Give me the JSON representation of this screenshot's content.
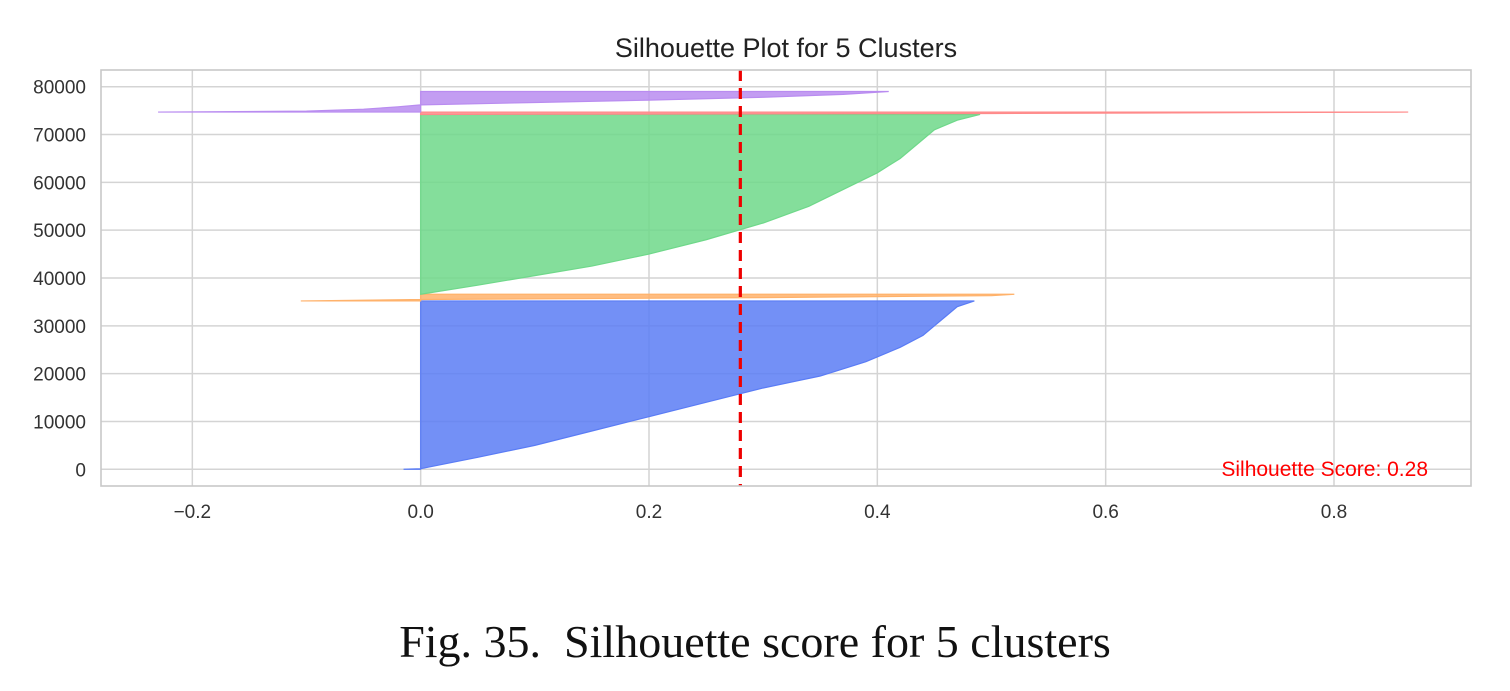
{
  "chart_data": {
    "type": "area",
    "title": "Silhouette Plot for 5 Clusters",
    "xlabel": "",
    "ylabel": "",
    "xlim": [
      -0.28,
      0.92
    ],
    "ylim": [
      -3500,
      83500
    ],
    "xticks": [
      -0.2,
      0.0,
      0.2,
      0.4,
      0.6,
      0.8
    ],
    "xtick_labels": [
      "−0.2",
      "0.0",
      "0.2",
      "0.4",
      "0.6",
      "0.8"
    ],
    "yticks": [
      0,
      10000,
      20000,
      30000,
      40000,
      50000,
      60000,
      70000,
      80000
    ],
    "ytick_labels": [
      "0",
      "10000",
      "20000",
      "30000",
      "40000",
      "50000",
      "60000",
      "70000",
      "80000"
    ],
    "grid": true,
    "average_silhouette": 0.28,
    "annotation": "Silhouette Score: 0.28",
    "annotation_color": "#ff0000",
    "series": [
      {
        "color": "#5a7cf5",
        "y_start": 0,
        "y_end": 35200,
        "profile": [
          [
            0,
            -0.015
          ],
          [
            120,
            0.0
          ],
          [
            2500,
            0.05
          ],
          [
            5000,
            0.1
          ],
          [
            8000,
            0.15
          ],
          [
            11000,
            0.2
          ],
          [
            14000,
            0.25
          ],
          [
            17000,
            0.3
          ],
          [
            19500,
            0.35
          ],
          [
            22500,
            0.39
          ],
          [
            25500,
            0.42
          ],
          [
            28000,
            0.44
          ],
          [
            30000,
            0.45
          ],
          [
            32000,
            0.46
          ],
          [
            34000,
            0.47
          ],
          [
            35200,
            0.485
          ]
        ]
      },
      {
        "color": "#ffb26b",
        "y_start": 35200,
        "y_end": 36600,
        "profile": [
          [
            35200,
            -0.105
          ],
          [
            35500,
            0.0
          ],
          [
            35900,
            0.3
          ],
          [
            36300,
            0.5
          ],
          [
            36600,
            0.52
          ]
        ]
      },
      {
        "color": "#6fd88a",
        "y_start": 36600,
        "y_end": 74200,
        "profile": [
          [
            36600,
            0.0
          ],
          [
            38500,
            0.05
          ],
          [
            40500,
            0.1
          ],
          [
            42500,
            0.15
          ],
          [
            45000,
            0.2
          ],
          [
            48000,
            0.25
          ],
          [
            51500,
            0.3
          ],
          [
            55000,
            0.34
          ],
          [
            58500,
            0.37
          ],
          [
            62000,
            0.4
          ],
          [
            65000,
            0.42
          ],
          [
            68000,
            0.435
          ],
          [
            71000,
            0.45
          ],
          [
            73000,
            0.47
          ],
          [
            74200,
            0.49
          ]
        ]
      },
      {
        "color": "#ff8a8a",
        "y_start": 74200,
        "y_end": 74700,
        "profile": [
          [
            74200,
            0.0
          ],
          [
            74400,
            0.5
          ],
          [
            74700,
            0.865
          ]
        ]
      },
      {
        "color": "#b98cf0",
        "y_start": 74700,
        "y_end": 79000,
        "profile": [
          [
            74700,
            -0.23
          ],
          [
            74900,
            -0.1
          ],
          [
            75300,
            -0.05
          ],
          [
            75800,
            -0.02
          ],
          [
            76200,
            0.0
          ],
          [
            76700,
            0.1
          ],
          [
            77200,
            0.2
          ],
          [
            77800,
            0.3
          ],
          [
            78400,
            0.37
          ],
          [
            79000,
            0.41
          ]
        ]
      }
    ]
  },
  "caption": "Fig. 35.  Silhouette score for 5 clusters"
}
